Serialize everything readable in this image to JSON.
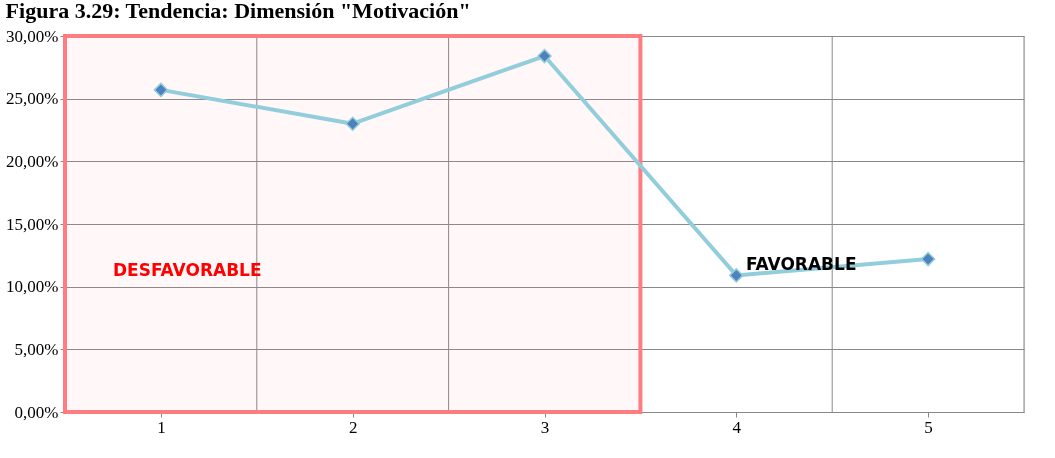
{
  "chart_data": {
    "type": "line",
    "title": "Figura 3.29: Tendencia: Dimensión \"Motivación\"",
    "categories": [
      "1",
      "2",
      "3",
      "4",
      "5"
    ],
    "series": [
      {
        "color": "#92cddc",
        "values": [
          25.7,
          23.0,
          28.4,
          10.9,
          12.2
        ]
      }
    ],
    "ylim": [
      0,
      30
    ],
    "yticks": [
      {
        "value": 0,
        "label": "0,00%"
      },
      {
        "value": 5,
        "label": "5,00%"
      },
      {
        "value": 10,
        "label": "10,00%"
      },
      {
        "value": 15,
        "label": "15,00%"
      },
      {
        "value": 20,
        "label": "20,00%"
      },
      {
        "value": 25,
        "label": "25,00%"
      },
      {
        "value": 30,
        "label": "30,00%"
      }
    ],
    "bands": [
      {
        "axis": "x",
        "from": "1",
        "to": "3",
        "label": "DESFAVORABLE",
        "color": "#ff7c80"
      }
    ],
    "annotations": [
      "FAVORABLE"
    ],
    "marker": "diamond",
    "line_style": "solid",
    "grid": true,
    "legend": false
  }
}
